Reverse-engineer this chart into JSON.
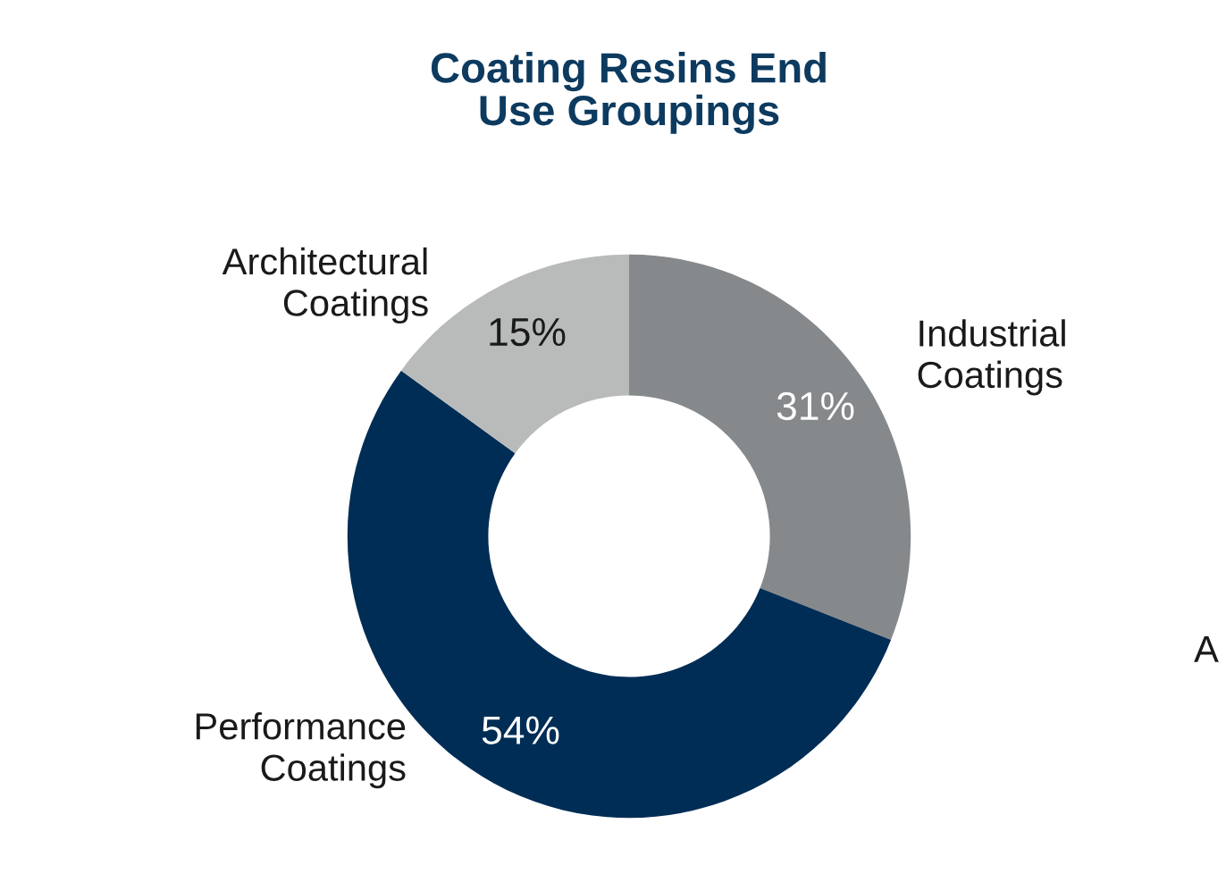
{
  "chart_data": {
    "type": "donut",
    "title": "Coating Resins End\nUse Groupings",
    "categories": [
      "Industrial\nCoatings",
      "Performance\nCoatings",
      "Architectural\nCoatings"
    ],
    "values": [
      31,
      54,
      15
    ],
    "value_labels": [
      "31%",
      "54%",
      "15%"
    ],
    "colors": [
      "#86898c",
      "#002d55",
      "#b9bbbb"
    ],
    "annotations": [
      "A"
    ]
  }
}
